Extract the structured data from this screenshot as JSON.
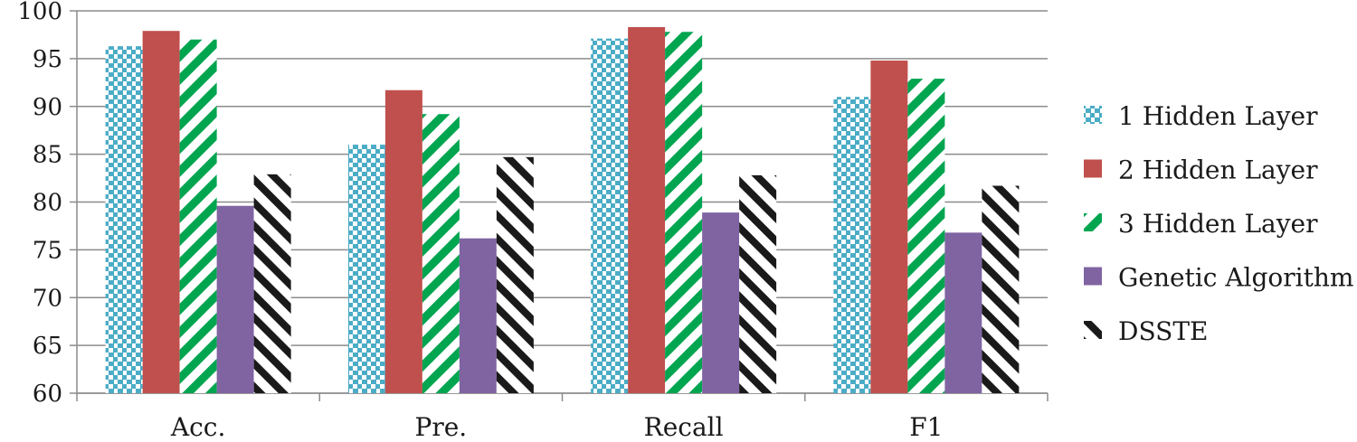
{
  "chart_data": {
    "type": "bar",
    "title": "",
    "xlabel": "",
    "ylabel": "",
    "categories": [
      "Acc.",
      "Pre.",
      "Recall",
      "F1"
    ],
    "ylim": [
      60,
      100
    ],
    "yticks": [
      60,
      65,
      70,
      75,
      80,
      85,
      90,
      95,
      100
    ],
    "grid": true,
    "legend_position": "right",
    "series": [
      {
        "name": "1 Hidden Layer",
        "values": [
          96.3,
          86.0,
          97.1,
          91.0
        ],
        "color": "#4bacc6",
        "pattern": "dots"
      },
      {
        "name": "2 Hidden Layer",
        "values": [
          97.9,
          91.7,
          98.3,
          94.8
        ],
        "color": "#c0504d",
        "pattern": "solid"
      },
      {
        "name": "3 Hidden Layer",
        "values": [
          97.0,
          89.2,
          97.8,
          92.9
        ],
        "color": "#00a550",
        "pattern": "diagonal-up"
      },
      {
        "name": "Genetic Algorithm",
        "values": [
          79.6,
          76.2,
          78.9,
          76.8
        ],
        "color": "#8064a2",
        "pattern": "solid"
      },
      {
        "name": "DSSTE",
        "values": [
          82.9,
          84.7,
          82.8,
          81.7
        ],
        "color": "#1a1a1a",
        "pattern": "diagonal-down"
      }
    ]
  }
}
